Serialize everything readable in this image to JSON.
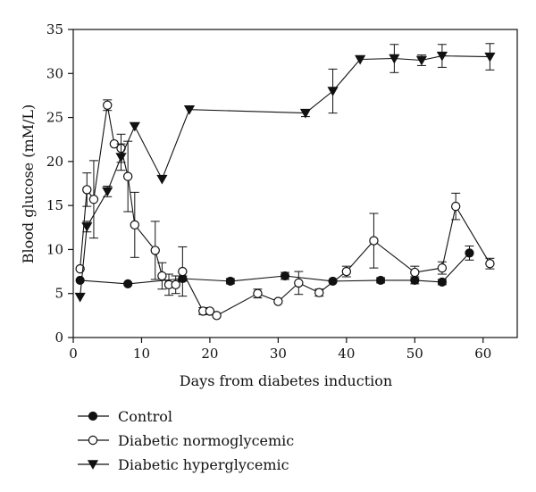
{
  "chart_data": {
    "type": "line",
    "title": "",
    "xlabel": "Days from diabetes induction",
    "ylabel": "Blood glucose (mM/L)",
    "xlim": [
      0,
      65
    ],
    "ylim": [
      0,
      35
    ],
    "xticks": [
      0,
      10,
      20,
      30,
      40,
      50,
      60
    ],
    "yticks": [
      0,
      5,
      10,
      15,
      20,
      25,
      30,
      35
    ],
    "grid": false,
    "legend_position": "bottom-left",
    "series": [
      {
        "name": "Control",
        "marker": "circle-filled",
        "points": [
          {
            "x": 1,
            "y": 6.5
          },
          {
            "x": 8,
            "y": 6.1
          },
          {
            "x": 16,
            "y": 6.7,
            "err": 0.3
          },
          {
            "x": 23,
            "y": 6.4,
            "err": 0.3
          },
          {
            "x": 31,
            "y": 7.0,
            "err": 0.4
          },
          {
            "x": 38,
            "y": 6.4
          },
          {
            "x": 45,
            "y": 6.5,
            "err": 0.3
          },
          {
            "x": 50,
            "y": 6.5,
            "err": 0.4
          },
          {
            "x": 54,
            "y": 6.3,
            "err": 0.3
          },
          {
            "x": 58,
            "y": 9.6,
            "err": 0.8
          }
        ]
      },
      {
        "name": "Diabetic normoglycemic",
        "marker": "circle-open",
        "points": [
          {
            "x": 1,
            "y": 7.8
          },
          {
            "x": 2,
            "y": 16.8,
            "err": 1.9
          },
          {
            "x": 3,
            "y": 15.7,
            "err": 4.4
          },
          {
            "x": 5,
            "y": 26.4,
            "err": 0.6
          },
          {
            "x": 6,
            "y": 22.0
          },
          {
            "x": 7,
            "y": 21.5,
            "err": 1.6
          },
          {
            "x": 8,
            "y": 18.3,
            "err": 4.0
          },
          {
            "x": 9,
            "y": 12.8,
            "err": 3.7
          },
          {
            "x": 12,
            "y": 9.9,
            "err": 3.3
          },
          {
            "x": 13,
            "y": 7.0,
            "err": 1.5
          },
          {
            "x": 14,
            "y": 6.0,
            "err": 1.2
          },
          {
            "x": 15,
            "y": 6.0,
            "err": 1.0
          },
          {
            "x": 16,
            "y": 7.5,
            "err": 2.8
          },
          {
            "x": 19,
            "y": 3.0,
            "err": 0.4
          },
          {
            "x": 20,
            "y": 3.0
          },
          {
            "x": 21,
            "y": 2.5
          },
          {
            "x": 27,
            "y": 5.0,
            "err": 0.5
          },
          {
            "x": 30,
            "y": 4.1
          },
          {
            "x": 33,
            "y": 6.2,
            "err": 1.3
          },
          {
            "x": 36,
            "y": 5.1,
            "err": 0.4
          },
          {
            "x": 40,
            "y": 7.5,
            "err": 0.6
          },
          {
            "x": 44,
            "y": 11.0,
            "err": 3.1
          },
          {
            "x": 50,
            "y": 7.4,
            "err": 0.7
          },
          {
            "x": 54,
            "y": 7.9,
            "err": 0.7
          },
          {
            "x": 56,
            "y": 14.9,
            "err": 1.5
          },
          {
            "x": 61,
            "y": 8.4,
            "err": 0.6
          }
        ]
      },
      {
        "name": "Diabetic hyperglycemic",
        "marker": "triangle-down-filled",
        "points": [
          {
            "x": 1,
            "y": 4.6
          },
          {
            "x": 2,
            "y": 12.6,
            "err": 0.6
          },
          {
            "x": 5,
            "y": 16.6,
            "err": 0.6
          },
          {
            "x": 7,
            "y": 20.5,
            "err": 1.5
          },
          {
            "x": 9,
            "y": 24.0
          },
          {
            "x": 13,
            "y": 18.0
          },
          {
            "x": 17,
            "y": 25.9
          },
          {
            "x": 34,
            "y": 25.5,
            "err": 0.4
          },
          {
            "x": 38,
            "y": 28.0,
            "err": 2.5
          },
          {
            "x": 42,
            "y": 31.6
          },
          {
            "x": 47,
            "y": 31.7,
            "err": 1.6
          },
          {
            "x": 51,
            "y": 31.5,
            "err": 0.6
          },
          {
            "x": 54,
            "y": 32.0,
            "err": 1.3
          },
          {
            "x": 61,
            "y": 31.9,
            "err": 1.5
          }
        ]
      }
    ]
  }
}
